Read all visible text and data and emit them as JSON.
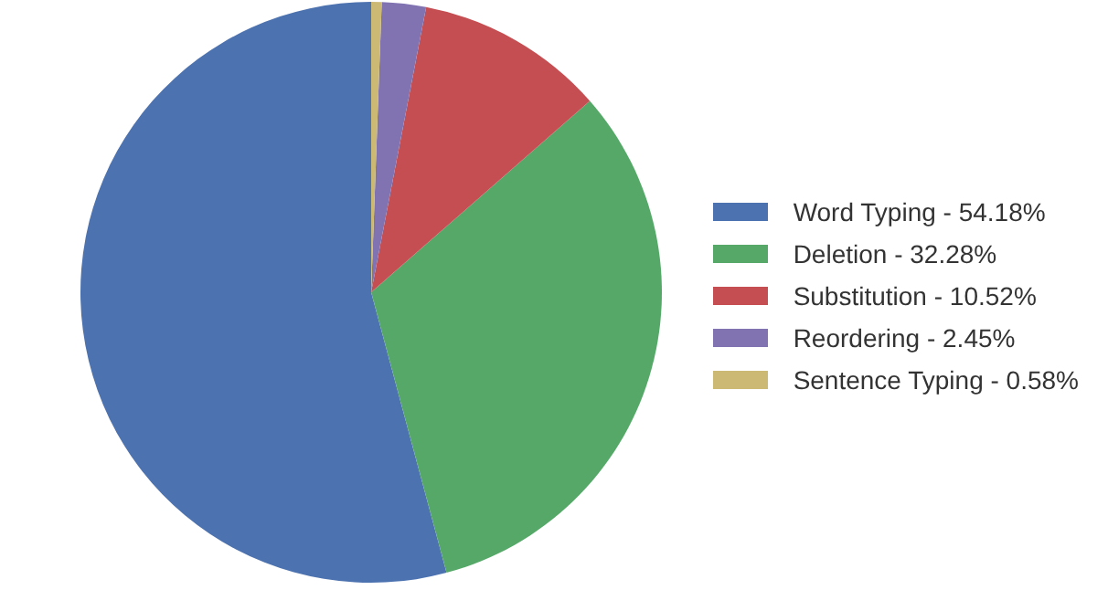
{
  "chart_data": {
    "type": "pie",
    "categories": [
      "Word Typing - 54.18%",
      "Deletion - 32.28%",
      "Substitution - 10.52%",
      "Reordering - 2.45%",
      "Sentence Typing - 0.58%"
    ],
    "values": [
      54.18,
      32.28,
      10.52,
      2.45,
      0.58
    ],
    "colors": [
      "#4c72b0",
      "#55a868",
      "#c44e52",
      "#8172b2",
      "#ccb974"
    ],
    "legend": "right"
  }
}
